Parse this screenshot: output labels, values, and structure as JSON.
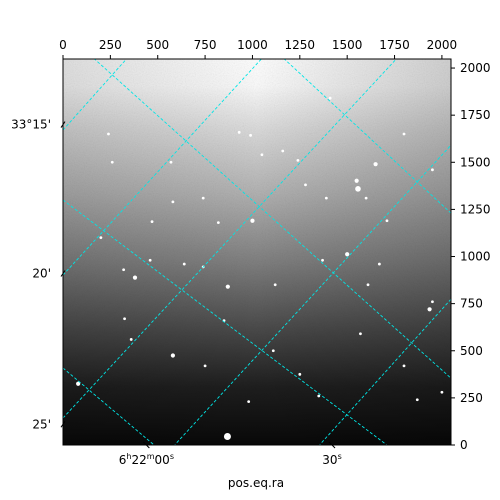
{
  "chart_data": {
    "type": "heatmap",
    "pixel_axes": {
      "x_range": [
        0,
        2048
      ],
      "y_range": [
        0,
        2048
      ],
      "x_ticks": [
        0,
        250,
        500,
        750,
        1000,
        1250,
        1500,
        1750,
        2000
      ],
      "y_ticks": [
        0,
        250,
        500,
        750,
        1000,
        1250,
        1500,
        1750,
        2000
      ]
    },
    "world_axes": {
      "xlabel": "pos.eq.ra",
      "ra_ticks": [
        {
          "h": "6",
          "m": "22",
          "s": "00",
          "x_pix": 440
        },
        {
          "s": "30",
          "x_pix": 1420
        }
      ],
      "dec_ticks": [
        {
          "label": "33°15'",
          "y_pix": 1700
        },
        {
          "label": "20'",
          "y_pix": 910
        },
        {
          "label": "25'",
          "y_pix": 110
        }
      ]
    },
    "grid": "on",
    "grid_color": "#00e5e5",
    "colormap": "gray",
    "stars": [
      [
        868,
        45,
        5
      ],
      [
        1557,
        1359,
        4
      ],
      [
        1550,
        1402,
        3
      ],
      [
        1000,
        1190,
        3
      ],
      [
        380,
        888,
        3
      ],
      [
        470,
        1185,
        2
      ],
      [
        580,
        1290,
        2
      ],
      [
        820,
        1180,
        2
      ],
      [
        740,
        945,
        2
      ],
      [
        1500,
        1012,
        3
      ],
      [
        990,
        1643,
        2
      ],
      [
        930,
        1659,
        2
      ],
      [
        1650,
        1490,
        3
      ],
      [
        870,
        840,
        3
      ],
      [
        1120,
        850,
        2
      ],
      [
        1160,
        1560,
        2
      ],
      [
        320,
        930,
        2
      ],
      [
        850,
        660,
        2
      ],
      [
        1370,
        980,
        2
      ],
      [
        580,
        475,
        3
      ],
      [
        325,
        670,
        2
      ],
      [
        1610,
        850,
        2
      ],
      [
        750,
        420,
        2
      ],
      [
        1280,
        1380,
        2
      ],
      [
        1570,
        590,
        2
      ],
      [
        1670,
        960,
        2
      ],
      [
        1935,
        720,
        3
      ],
      [
        1800,
        420,
        2
      ],
      [
        2000,
        280,
        2
      ],
      [
        1110,
        500,
        2
      ],
      [
        640,
        960,
        2
      ],
      [
        200,
        1100,
        2
      ],
      [
        80,
        325,
        3
      ],
      [
        460,
        980,
        2
      ],
      [
        1390,
        1310,
        2
      ],
      [
        1950,
        1460,
        2
      ],
      [
        1410,
        1840,
        2
      ],
      [
        1240,
        1510,
        2
      ],
      [
        1800,
        1650,
        2
      ],
      [
        1710,
        1190,
        2
      ],
      [
        1870,
        240,
        2
      ],
      [
        1350,
        260,
        2
      ],
      [
        1250,
        375,
        2
      ],
      [
        980,
        230,
        2
      ],
      [
        740,
        1310,
        2
      ],
      [
        260,
        1500,
        2
      ],
      [
        1950,
        760,
        2
      ],
      [
        360,
        560,
        2
      ],
      [
        570,
        1500,
        2
      ],
      [
        1050,
        1540,
        2
      ],
      [
        1600,
        1310,
        2
      ],
      [
        240,
        1650,
        2
      ]
    ]
  }
}
